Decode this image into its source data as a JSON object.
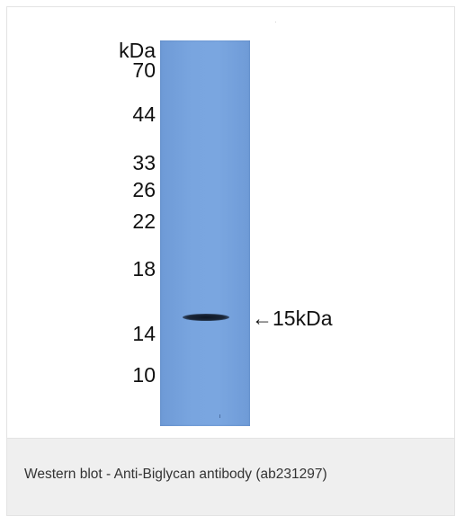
{
  "figure": {
    "ladder_unit": "kDa",
    "markers": [
      "70",
      "44",
      "33",
      "26",
      "22",
      "18",
      "14",
      "10"
    ],
    "band_label": "←15kDa",
    "lane_color": "#77a3de",
    "band_color": "#141e2e"
  },
  "caption": {
    "text": "Western blot - Anti-Biglycan antibody (ab231297)"
  }
}
